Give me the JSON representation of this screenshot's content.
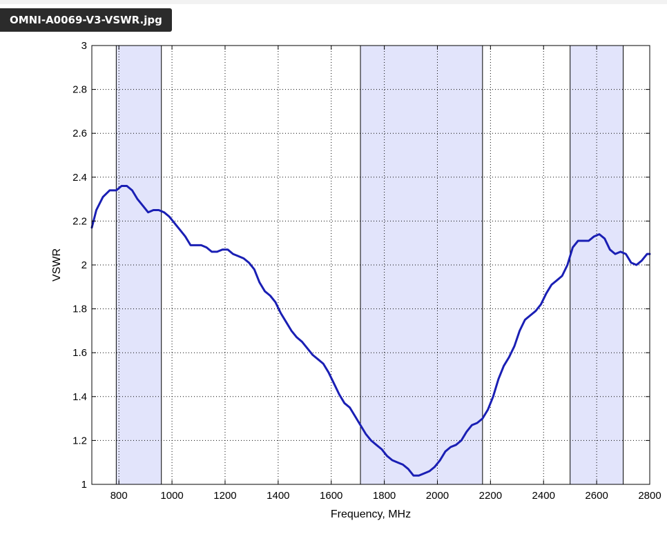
{
  "file_label": "OMNI-A0069-V3-VSWR.jpg",
  "colors": {
    "line": "#1a1fb4",
    "band_fill": "#e2e4fb",
    "axis": "#000000"
  },
  "chart_data": {
    "type": "line",
    "title": "",
    "xlabel": "Frequency, MHz",
    "ylabel": "VSWR",
    "xlim": [
      698,
      2800
    ],
    "ylim": [
      1,
      3
    ],
    "grid": true,
    "xticks": [
      800,
      1000,
      1200,
      1400,
      1600,
      1800,
      2000,
      2200,
      2400,
      2600,
      2800
    ],
    "yticks": [
      1,
      1.2,
      1.4,
      1.6,
      1.8,
      2,
      2.2,
      2.4,
      2.6,
      2.8,
      3
    ],
    "bands": [
      [
        790,
        960
      ],
      [
        1710,
        2170
      ],
      [
        2500,
        2700
      ]
    ],
    "series": [
      {
        "x": [
          698,
          715,
          740,
          765,
          790,
          810,
          830,
          850,
          870,
          890,
          910,
          930,
          950,
          970,
          990,
          1010,
          1030,
          1050,
          1070,
          1090,
          1110,
          1130,
          1150,
          1170,
          1190,
          1210,
          1230,
          1250,
          1270,
          1290,
          1310,
          1330,
          1350,
          1370,
          1390,
          1410,
          1430,
          1450,
          1470,
          1490,
          1510,
          1530,
          1550,
          1570,
          1590,
          1610,
          1630,
          1650,
          1670,
          1690,
          1710,
          1730,
          1750,
          1770,
          1790,
          1810,
          1830,
          1850,
          1870,
          1890,
          1910,
          1930,
          1950,
          1970,
          1990,
          2010,
          2030,
          2050,
          2070,
          2090,
          2110,
          2130,
          2150,
          2170,
          2190,
          2210,
          2230,
          2250,
          2270,
          2290,
          2310,
          2330,
          2350,
          2370,
          2390,
          2410,
          2430,
          2450,
          2470,
          2490,
          2510,
          2530,
          2550,
          2570,
          2590,
          2610,
          2630,
          2650,
          2670,
          2690,
          2710,
          2730,
          2750,
          2770,
          2790,
          2800
        ],
        "y": [
          2.17,
          2.25,
          2.31,
          2.34,
          2.34,
          2.36,
          2.36,
          2.34,
          2.3,
          2.27,
          2.24,
          2.25,
          2.25,
          2.24,
          2.22,
          2.19,
          2.16,
          2.13,
          2.09,
          2.09,
          2.09,
          2.08,
          2.06,
          2.06,
          2.07,
          2.07,
          2.05,
          2.04,
          2.03,
          2.01,
          1.98,
          1.92,
          1.88,
          1.86,
          1.83,
          1.78,
          1.74,
          1.7,
          1.67,
          1.65,
          1.62,
          1.59,
          1.57,
          1.55,
          1.51,
          1.46,
          1.41,
          1.37,
          1.35,
          1.31,
          1.27,
          1.23,
          1.2,
          1.18,
          1.16,
          1.13,
          1.11,
          1.1,
          1.09,
          1.07,
          1.04,
          1.04,
          1.05,
          1.06,
          1.08,
          1.11,
          1.15,
          1.17,
          1.18,
          1.2,
          1.24,
          1.27,
          1.28,
          1.3,
          1.34,
          1.4,
          1.48,
          1.54,
          1.58,
          1.63,
          1.7,
          1.75,
          1.77,
          1.79,
          1.82,
          1.87,
          1.91,
          1.93,
          1.95,
          2.0,
          2.08,
          2.11,
          2.11,
          2.11,
          2.13,
          2.14,
          2.12,
          2.07,
          2.05,
          2.06,
          2.05,
          2.01,
          2.0,
          2.02,
          2.05,
          2.05
        ]
      }
    ]
  }
}
